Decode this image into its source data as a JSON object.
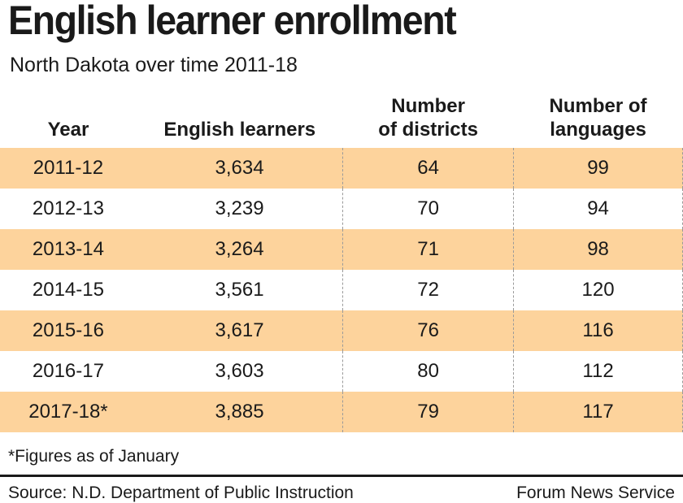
{
  "title": "English learner enrollment",
  "subtitle": "North Dakota over time 2011-18",
  "chart_data": {
    "type": "table",
    "columns": [
      "Year",
      "English learners",
      "Number of districts",
      "Number of languages"
    ],
    "rows": [
      [
        "2011-12",
        "3,634",
        "64",
        "99"
      ],
      [
        "2012-13",
        "3,239",
        "70",
        "94"
      ],
      [
        "2013-14",
        "3,264",
        "71",
        "98"
      ],
      [
        "2014-15",
        "3,561",
        "72",
        "120"
      ],
      [
        "2015-16",
        "3,617",
        "76",
        "116"
      ],
      [
        "2016-17",
        "3,603",
        "80",
        "112"
      ],
      [
        "2017-18*",
        "3,885",
        "79",
        "117"
      ]
    ]
  },
  "header_lines": [
    [
      "Year"
    ],
    [
      "English learners"
    ],
    [
      "Number",
      "of districts"
    ],
    [
      "Number of",
      "languages"
    ]
  ],
  "colors": {
    "stripe": "#fdd39c",
    "text": "#1a1a1a"
  },
  "footnote": "*Figures as of January",
  "source": "Source: N.D. Department of Public Instruction",
  "credit": "Forum News Service"
}
